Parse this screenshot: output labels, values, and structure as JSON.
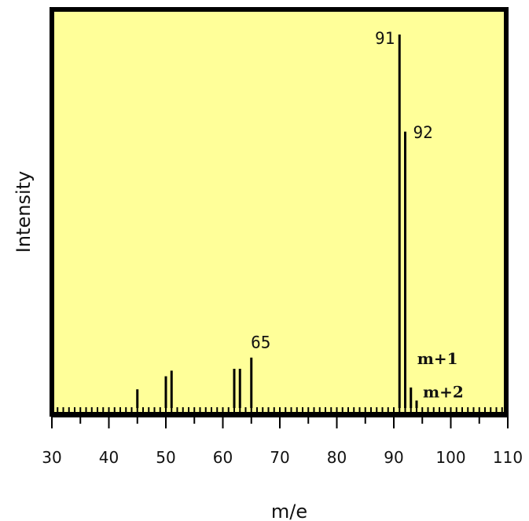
{
  "chart_data": {
    "type": "bar",
    "title": "",
    "xlabel": "m/e",
    "ylabel": "Intensity",
    "xlim": [
      30,
      110
    ],
    "ylim": [
      0,
      100
    ],
    "x_ticks": [
      "30",
      "40",
      "50",
      "60",
      "70",
      "80",
      "90",
      "100",
      "110"
    ],
    "grid": false,
    "background_color": "#ffff99",
    "series": [
      {
        "x": [
          45,
          50,
          51,
          62,
          63,
          65,
          91,
          92,
          93,
          94
        ],
        "values": [
          5,
          8.5,
          10,
          10.5,
          10.5,
          13.5,
          100,
          74,
          5.5,
          2
        ]
      }
    ],
    "annotations": [
      {
        "x": 91,
        "text": "91"
      },
      {
        "x": 92,
        "text": "92"
      },
      {
        "x": 65,
        "text": "65"
      },
      {
        "x": 93,
        "text": "m+1"
      },
      {
        "x": 94,
        "text": "m+2"
      }
    ]
  }
}
